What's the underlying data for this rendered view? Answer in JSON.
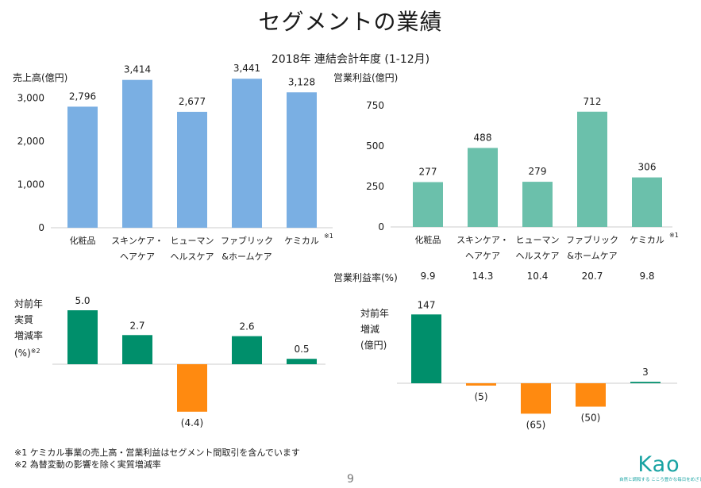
{
  "title": "セグメントの業績",
  "subtitle": "2018年 連結会計年度 (1-12月)",
  "segments": [
    {
      "line1": "化粧品",
      "line2": ""
    },
    {
      "line1": "スキンケア・",
      "line2": "ヘアケア"
    },
    {
      "line1": "ヒューマン",
      "line2": "ヘルスケア"
    },
    {
      "line1": "ファブリック",
      "line2": "&ホームケア"
    },
    {
      "line1": "ケミカル",
      "line2": ""
    }
  ],
  "note_mark": "※1",
  "margin_label": "営業利益率(%)",
  "margin_values": [
    "9.9",
    "14.3",
    "10.4",
    "20.7",
    "9.8"
  ],
  "ylabel_growth": [
    "対前年",
    "実質",
    "増減率",
    "(%)"
  ],
  "ylabel_growth_note": "※2",
  "ylabel_change": [
    "対前年",
    "増減",
    "(億円)"
  ],
  "chart_data": [
    {
      "type": "bar",
      "ylabel": "売上高(億円)",
      "categories": [
        "化粧品",
        "スキンケア・ヘアケア",
        "ヒューマンヘルスケア",
        "ファブリック&ホームケア",
        "ケミカル"
      ],
      "values": [
        2796,
        3414,
        2677,
        3441,
        3128
      ],
      "value_labels": [
        "2,796",
        "3,414",
        "2,677",
        "3,441",
        "3,128"
      ],
      "yticks": [
        0,
        1000,
        2000,
        3000
      ],
      "ytick_labels": [
        "0",
        "1,000",
        "2,000",
        "3,000"
      ],
      "ylim": [
        0,
        3500
      ],
      "color": "#7aafe3"
    },
    {
      "type": "bar",
      "ylabel": "営業利益(億円)",
      "categories": [
        "化粧品",
        "スキンケア・ヘアケア",
        "ヒューマンヘルスケア",
        "ファブリック&ホームケア",
        "ケミカル"
      ],
      "values": [
        277,
        488,
        279,
        712,
        306
      ],
      "value_labels": [
        "277",
        "488",
        "279",
        "712",
        "306"
      ],
      "yticks": [
        0,
        250,
        500,
        750
      ],
      "ytick_labels": [
        "0",
        "250",
        "500",
        "750"
      ],
      "ylim": [
        0,
        750
      ],
      "color": "#6bc0ab"
    },
    {
      "type": "bar",
      "categories": [
        "化粧品",
        "スキンケア・ヘアケア",
        "ヒューマンヘルスケア",
        "ファブリック&ホームケア",
        "ケミカル"
      ],
      "values": [
        5.0,
        2.7,
        -4.4,
        2.6,
        0.5
      ],
      "value_labels": [
        "5.0",
        "2.7",
        "(4.4)",
        "2.6",
        "0.5"
      ],
      "positive_color": "#008f6b",
      "negative_color": "#ff8a10"
    },
    {
      "type": "bar",
      "categories": [
        "化粧品",
        "スキンケア・ヘアケア",
        "ヒューマンヘルスケア",
        "ファブリック&ホームケア",
        "ケミカル"
      ],
      "values": [
        147,
        -5,
        -65,
        -50,
        3
      ],
      "value_labels": [
        "147",
        "(5)",
        "(65)",
        "(50)",
        "3"
      ],
      "positive_color": "#008f6b",
      "negative_color": "#ff8a10"
    }
  ],
  "footnotes": [
    "※1 ケミカル事業の売上高・営業利益はセグメント間取引を含んでいます",
    "※2 為替変動の影響を除く実質増減率"
  ],
  "page_number": "9",
  "logo": {
    "text": "Kao",
    "tagline": "自然と調和する こころ豊かな毎日をめざして"
  },
  "colors": {
    "sales_bar": "#7aafe3",
    "profit_bar": "#6bc0ab",
    "positive": "#008f6b",
    "negative": "#ff8a10",
    "logo": "#19a3a3"
  }
}
